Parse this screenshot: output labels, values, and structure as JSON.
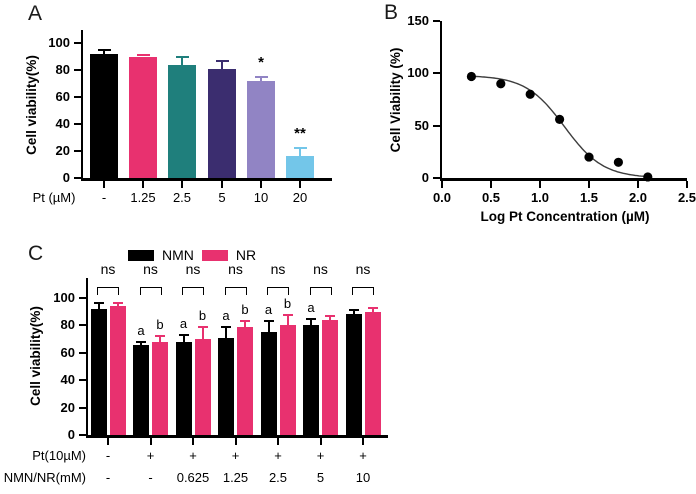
{
  "figure": {
    "background": "#ffffff"
  },
  "chart_data": [
    {
      "panel": "A",
      "type": "bar",
      "ylabel": "Cell viability(%)",
      "xlabel": "Pt (µM)",
      "ylim": [
        0,
        108
      ],
      "yticks": [
        0,
        20,
        40,
        60,
        80,
        100
      ],
      "grid": false,
      "categories": [
        "-",
        "1.25",
        "2.5",
        "5",
        "10",
        "20"
      ],
      "values": [
        92,
        90,
        84,
        81,
        72,
        16
      ],
      "errors_up": [
        3,
        1,
        6,
        5.5,
        2.5,
        6.5
      ],
      "bar_colors": [
        "#000000",
        "#e8316f",
        "#1f7f7c",
        "#3b2d6f",
        "#9184c4",
        "#73c6e9"
      ],
      "significance": [
        "",
        "",
        "",
        "",
        "*",
        "**"
      ]
    },
    {
      "panel": "B",
      "type": "scatter",
      "ylabel": "Cell Viability (%)",
      "xlabel": "Log Pt Concentration (µM)",
      "xlim": [
        0,
        2.5
      ],
      "ylim": [
        0,
        150
      ],
      "xticks": [
        "0.0",
        "0.5",
        "1.0",
        "1.5",
        "2.0",
        "2.5"
      ],
      "yticks": [
        0,
        50,
        100,
        150
      ],
      "grid": false,
      "x": [
        0.3,
        0.6,
        0.9,
        1.2,
        1.5,
        1.8,
        2.1
      ],
      "y": [
        97,
        90,
        80,
        56,
        20,
        15,
        1
      ],
      "fit_curve": {
        "model": "four-parameter-logistic",
        "top": 98,
        "bottom": 0,
        "logIC50": 1.25,
        "hillslope": 2.2
      },
      "point_color": "#000000",
      "curve_color": "#3d3d3d"
    },
    {
      "panel": "C",
      "type": "grouped-bar",
      "ylabel": "Cell viability(%)",
      "ylim": [
        0,
        113
      ],
      "yticks": [
        0,
        20,
        40,
        60,
        80,
        100
      ],
      "grid": false,
      "legend": [
        {
          "label": "NMN",
          "color": "#000000"
        },
        {
          "label": "NR",
          "color": "#e8316f"
        }
      ],
      "series": [
        {
          "name": "NMN",
          "color": "#000000",
          "values": [
            92,
            66,
            68,
            71,
            75,
            80,
            88
          ],
          "errors_up": [
            4,
            2,
            5,
            8,
            8,
            5,
            3
          ],
          "bar_letters": [
            "",
            "a",
            "a",
            "a",
            "a",
            "a",
            ""
          ]
        },
        {
          "name": "NR",
          "color": "#e8316f",
          "values": [
            94,
            68,
            70,
            79,
            80,
            84,
            90
          ],
          "errors_up": [
            2.5,
            4,
            9,
            4.5,
            7.5,
            2.5,
            3
          ],
          "bar_letters": [
            "",
            "b",
            "b",
            "b",
            "b",
            "",
            ""
          ]
        }
      ],
      "group_significance": [
        "ns",
        "ns",
        "ns",
        "ns",
        "ns",
        "ns",
        "ns"
      ],
      "x_rows": [
        {
          "label": "Pt(10µM)",
          "values": [
            "-",
            "+",
            "+",
            "+",
            "+",
            "+",
            "+"
          ]
        },
        {
          "label": "NMN/NR(mM)",
          "values": [
            "-",
            "-",
            "0.625",
            "1.25",
            "2.5",
            "5",
            "10"
          ]
        }
      ]
    }
  ]
}
